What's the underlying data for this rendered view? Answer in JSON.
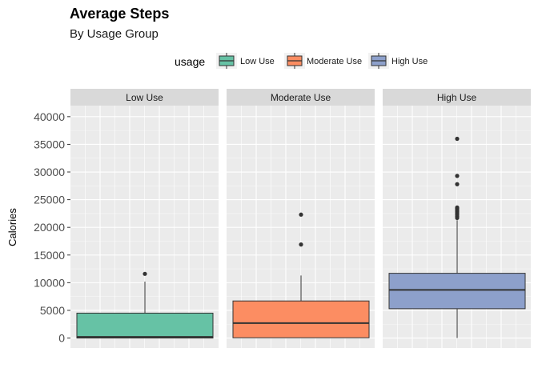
{
  "chart_data": {
    "type": "boxplot",
    "title": "Average Steps",
    "subtitle": "By Usage Group",
    "ylabel": "Calories",
    "xlabel": "",
    "ylim": [
      -1800,
      42000
    ],
    "yticks": [
      0,
      5000,
      10000,
      15000,
      20000,
      25000,
      30000,
      35000,
      40000
    ],
    "grid": true,
    "legend": {
      "title": "usage",
      "position": "top",
      "entries": [
        "Low Use",
        "Moderate Use",
        "High Use"
      ]
    },
    "panels": [
      {
        "name": "Low Use",
        "color": "#66C2A5",
        "q1": 0,
        "median": 200,
        "q3": 4500,
        "whisker_low": 0,
        "whisker_high": 10200,
        "outliers": [
          11600
        ]
      },
      {
        "name": "Moderate Use",
        "color": "#FC8D62",
        "q1": 50,
        "median": 2700,
        "q3": 6700,
        "whisker_low": 0,
        "whisker_high": 11300,
        "outliers": [
          16900,
          22300
        ]
      },
      {
        "name": "High Use",
        "color": "#8DA0CB",
        "q1": 5300,
        "median": 8700,
        "q3": 11700,
        "whisker_low": 0,
        "whisker_high": 21300,
        "outliers": [
          21700,
          22000,
          22300,
          22600,
          22800,
          23000,
          23200,
          23400,
          23600,
          27800,
          29300,
          36000
        ]
      }
    ]
  }
}
